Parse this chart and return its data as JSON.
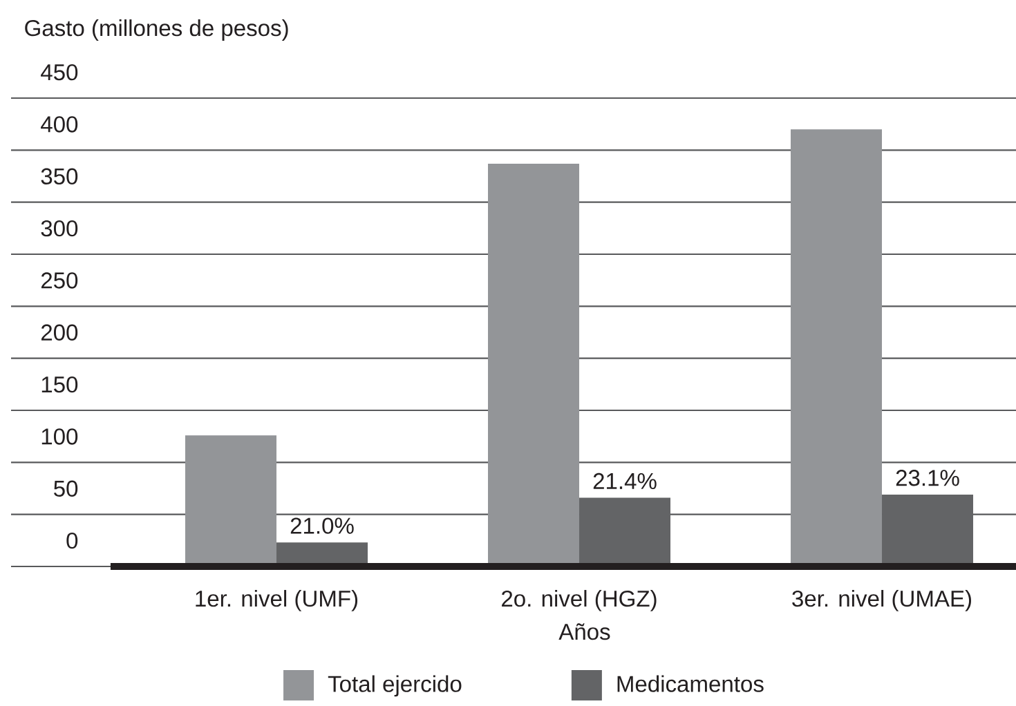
{
  "chart_data": {
    "type": "bar",
    "ylabel": "Gasto (millones de pesos)",
    "xlabel": "Años",
    "categories": [
      "1er. nivel (UMF)",
      "2o. nivel (HGZ)",
      "3er. nivel (UMAE)"
    ],
    "series": [
      {
        "name": "Total ejercido",
        "color": "#939598",
        "values": [
          126,
          387,
          420
        ]
      },
      {
        "name": "Medicamentos",
        "color": "#636466",
        "values": [
          23,
          66,
          69
        ]
      }
    ],
    "annotations": [
      {
        "text": "21.0%",
        "x": "1er. nivel (UMF)",
        "y": 23
      },
      {
        "text": "21.4%",
        "x": "2o. nivel (HGZ)",
        "y": 66
      },
      {
        "text": "23.1%",
        "x": "3er. nivel (UMAE)",
        "y": 69
      }
    ],
    "ylim": [
      0,
      450
    ],
    "yticks": [
      0,
      50,
      100,
      150,
      200,
      250,
      300,
      350,
      400,
      450
    ],
    "grid": "y",
    "legend": "bottom"
  }
}
